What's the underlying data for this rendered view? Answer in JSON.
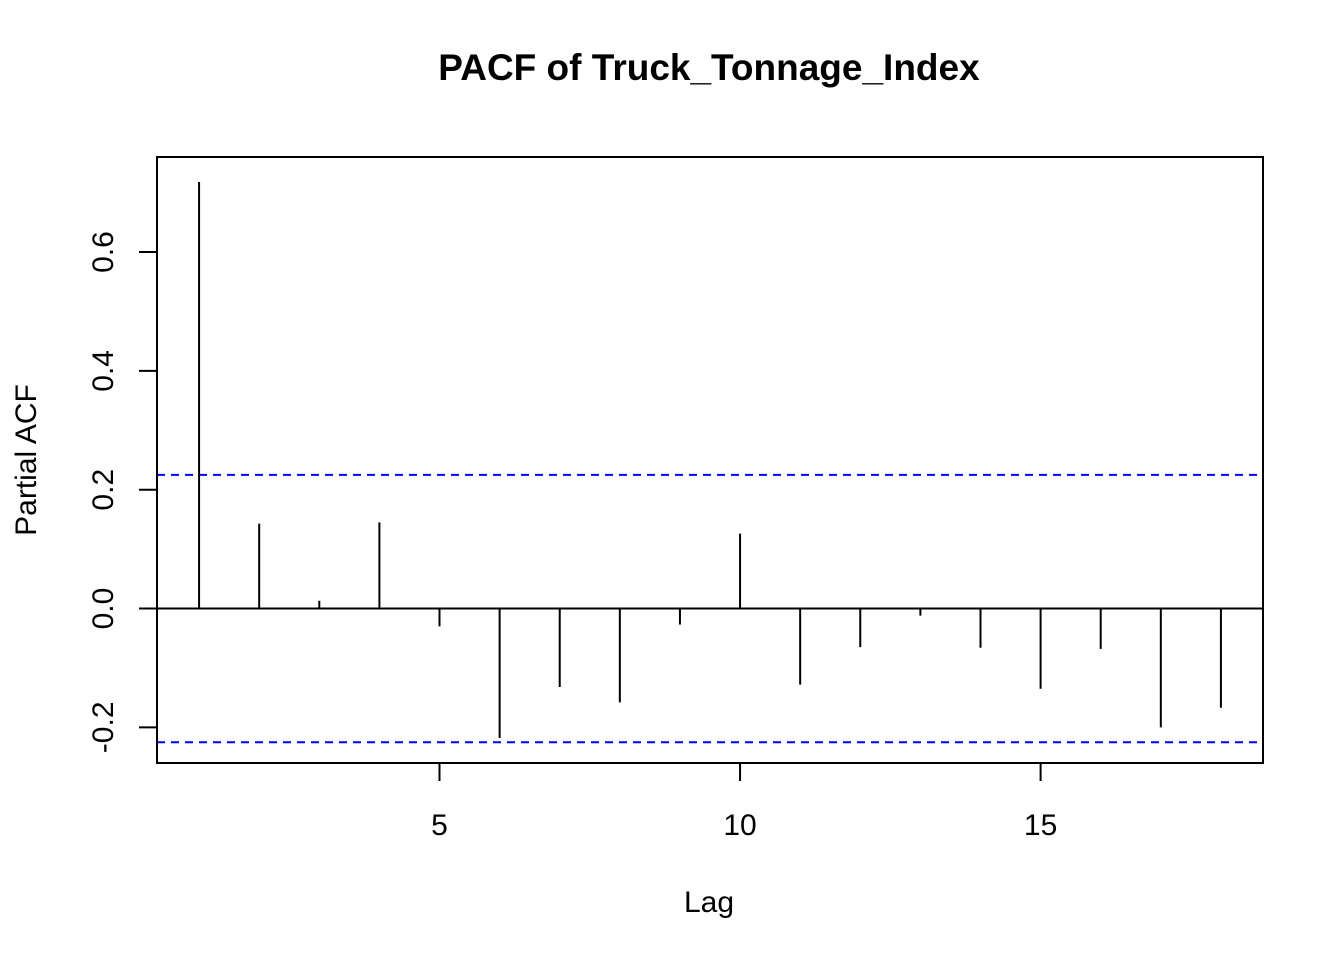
{
  "chart_data": {
    "type": "bar",
    "title": "PACF of Truck_Tonnage_Index",
    "xlabel": "Lag",
    "ylabel": "Partial ACF",
    "x": [
      1,
      2,
      3,
      4,
      5,
      6,
      7,
      8,
      9,
      10,
      11,
      12,
      13,
      14,
      15,
      16,
      17,
      18
    ],
    "values": [
      0.718,
      0.143,
      0.013,
      0.145,
      -0.03,
      -0.218,
      -0.132,
      -0.158,
      -0.027,
      0.126,
      -0.128,
      -0.065,
      -0.012,
      -0.066,
      -0.135,
      -0.068,
      -0.2,
      -0.167
    ],
    "confidence_bound": 0.225,
    "xlim": [
      0.3,
      18.7
    ],
    "ylim": [
      -0.26,
      0.76
    ],
    "x_ticks": [
      5,
      10,
      15
    ],
    "x_tick_labels": [
      "5",
      "10",
      "15"
    ],
    "y_ticks": [
      -0.2,
      0.0,
      0.2,
      0.4,
      0.6
    ],
    "y_tick_labels": [
      "-0.2",
      "0.0",
      "0.2",
      "0.4",
      "0.6"
    ],
    "grid": false,
    "colors": {
      "spikes": "#000000",
      "zero_line": "#000000",
      "confidence_lines": "#0000ff",
      "frame": "#000000"
    }
  }
}
